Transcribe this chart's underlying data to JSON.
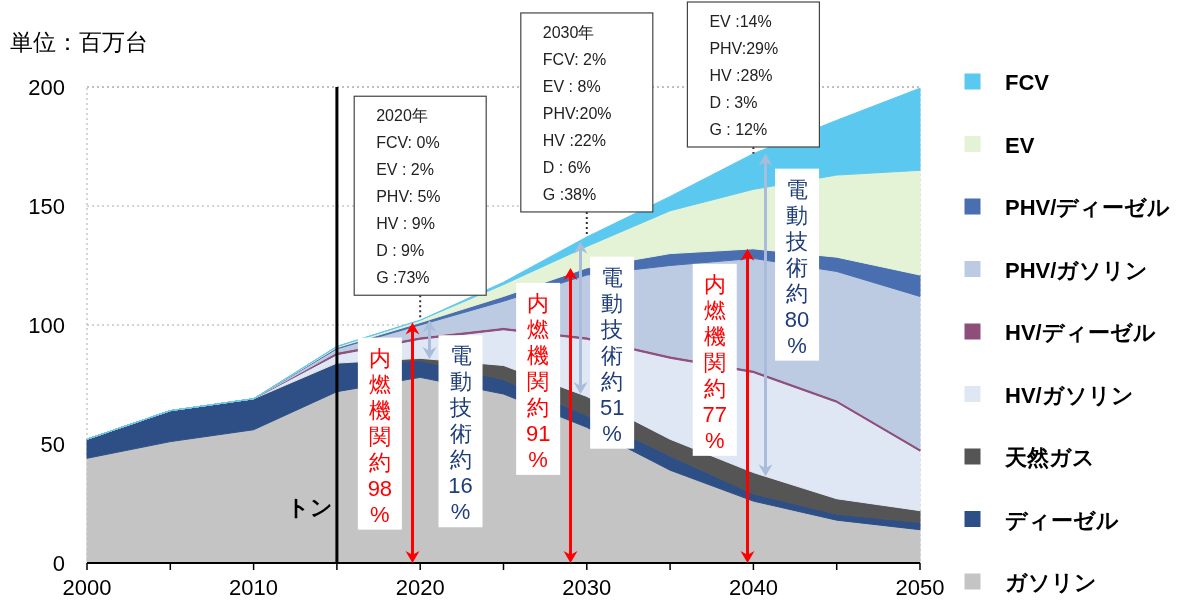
{
  "chart_data": {
    "type": "area",
    "stacked": true,
    "ylabel": "単位：百万台",
    "x": [
      2000,
      2005,
      2010,
      2015,
      2020,
      2025,
      2030,
      2035,
      2040,
      2045,
      2050
    ],
    "xlim": [
      2000,
      2050
    ],
    "ylim": [
      0,
      200
    ],
    "xticks": [
      2000,
      {
        "value": 2005,
        "label": null
      },
      2010,
      {
        "value": 2015,
        "label": null
      },
      2020,
      {
        "value": 2025,
        "label": null
      },
      2030,
      {
        "value": 2035,
        "label": null
      },
      2040,
      {
        "value": 2045,
        "label": null
      },
      2050
    ],
    "yticks": [
      0,
      50,
      100,
      150,
      200
    ],
    "grid": "y",
    "legend": "right",
    "series": [
      {
        "name": "ガソリン",
        "color": "#c4c4c4",
        "values": [
          44,
          51,
          56,
          72,
          78,
          71,
          57,
          39,
          26,
          18,
          14
        ]
      },
      {
        "name": "ディーゼル",
        "color": "#2d4f86",
        "values": [
          8,
          13,
          13,
          12,
          7,
          6,
          5,
          6,
          3,
          2.5,
          3
        ]
      },
      {
        "name": "天然ガス",
        "color": "#555555",
        "values": [
          0,
          0,
          0,
          0,
          1,
          6,
          8,
          7,
          9,
          6.5,
          5
        ]
      },
      {
        "name": "HV/ガソリン",
        "color": "#dfe7f4",
        "values": [
          0,
          0,
          0,
          3.5,
          8,
          15,
          24,
          34,
          42,
          40.5,
          25
        ]
      },
      {
        "name": "HV/ディーゼル",
        "color": "#8e4e7a",
        "values": [
          0,
          0,
          0,
          1,
          1,
          1,
          1,
          1,
          1,
          1,
          1
        ]
      },
      {
        "name": "PHV/ガソリン",
        "color": "#bccbe2",
        "values": [
          0,
          0,
          0,
          1.5,
          5,
          11,
          26,
          38,
          47,
          54,
          64
        ]
      },
      {
        "name": "PHV/ディーゼル",
        "color": "#4a6fb0",
        "values": [
          0,
          0,
          0,
          0.5,
          1,
          2,
          3,
          5,
          4,
          6,
          9
        ]
      },
      {
        "name": "EV",
        "color": "#e4f2d6",
        "values": [
          0,
          0,
          0,
          0.5,
          1,
          5,
          9,
          18,
          25,
          34.5,
          44
        ]
      },
      {
        "name": "FCV",
        "color": "#5bc8f0",
        "values": [
          0,
          0,
          0,
          0,
          0,
          1,
          4,
          6,
          15,
          23,
          34.5
        ]
      }
    ],
    "ref_lines": [
      {
        "axis": "x",
        "value": 2015,
        "label": "トン",
        "color": "#000000",
        "line_style": "solid"
      }
    ],
    "annotations": [
      {
        "text": "2020年\nFCV: 0%\nEV : 2%\nPHV: 5%\nHV : 9%\nD : 9%\nG :73%",
        "x": 2020,
        "y": 102
      },
      {
        "text": "内燃機関約98%",
        "x": 2019.5,
        "y": 101
      },
      {
        "text": "電動技術約16%",
        "x": 2020.5,
        "y": 102
      },
      {
        "text": "2030年\nFCV: 2%\nEV : 8%\nPHV:20%\nHV :22%\nD : 6%\nG :38%",
        "x": 2030,
        "y": 137
      },
      {
        "text": "内燃機関約91%",
        "x": 2029,
        "y": 124
      },
      {
        "text": "電動技術約51%",
        "x": 2029.6,
        "y": 135
      },
      {
        "text": "EV :14%\nPHV:29%\nHV :28%\nD : 3%\nG : 12%",
        "x": 2040,
        "y": 172
      },
      {
        "text": "内燃機関約77%",
        "x": 2039.6,
        "y": 132
      },
      {
        "text": "電動技術約80%",
        "x": 2040.7,
        "y": 172
      }
    ]
  }
}
